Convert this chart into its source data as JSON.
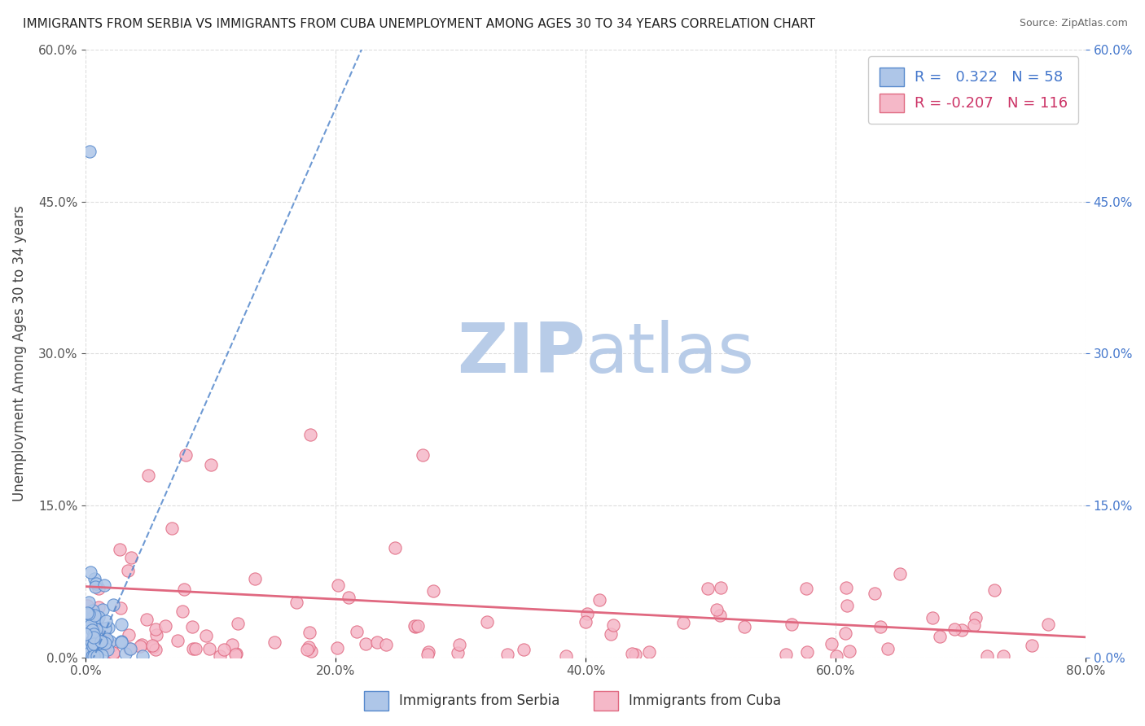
{
  "title": "IMMIGRANTS FROM SERBIA VS IMMIGRANTS FROM CUBA UNEMPLOYMENT AMONG AGES 30 TO 34 YEARS CORRELATION CHART",
  "source": "Source: ZipAtlas.com",
  "ylabel": "Unemployment Among Ages 30 to 34 years",
  "xlim": [
    0,
    0.8
  ],
  "ylim": [
    0,
    0.6
  ],
  "yticks": [
    0.0,
    0.15,
    0.3,
    0.45,
    0.6
  ],
  "ytick_labels_left": [
    "0.0%",
    "15.0%",
    "30.0%",
    "45.0%",
    "60.0%"
  ],
  "ytick_labels_right": [
    "0.0%",
    "15.0%",
    "30.0%",
    "45.0%",
    "60.0%"
  ],
  "xticks": [
    0.0,
    0.2,
    0.4,
    0.6,
    0.8
  ],
  "xtick_labels": [
    "0.0%",
    "20.0%",
    "40.0%",
    "60.0%",
    "80.0%"
  ],
  "serbia_R": 0.322,
  "serbia_N": 58,
  "cuba_R": -0.207,
  "cuba_N": 116,
  "serbia_color": "#aec6e8",
  "serbia_edge": "#5588cc",
  "cuba_color": "#f5b8c8",
  "cuba_edge": "#e06880",
  "serbia_trend_color": "#5588cc",
  "cuba_trend_color": "#e06880",
  "watermark_zip_color": "#b8cce8",
  "watermark_atlas_color": "#b8cce8",
  "background_color": "#ffffff",
  "grid_color": "#dddddd",
  "title_fontsize": 11,
  "axis_tick_fontsize": 11,
  "right_tick_color": "#4477cc",
  "left_tick_color": "#555555"
}
